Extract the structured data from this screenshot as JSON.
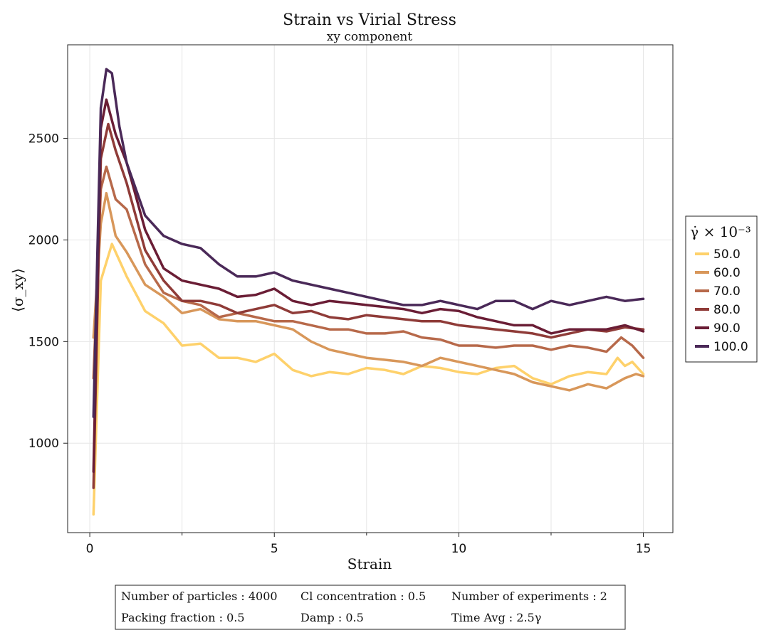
{
  "chart_data": {
    "type": "line",
    "title": "Strain vs Virial Stress",
    "subtitle": "xy component",
    "xlabel": "Strain",
    "ylabel": "⟨σ_xy⟩",
    "xlim": [
      -0.6,
      15.8
    ],
    "ylim": [
      560,
      2960
    ],
    "xticks": [
      0,
      5,
      10,
      15
    ],
    "yticks": [
      1000,
      1500,
      2000,
      2500
    ],
    "grid": true,
    "legend": {
      "title": "γ̇ × 10⁻³",
      "placement": "right"
    },
    "series": [
      {
        "name": "50.0",
        "color": "#fed16b",
        "points": [
          [
            0.1,
            650
          ],
          [
            0.3,
            1800
          ],
          [
            0.6,
            1980
          ],
          [
            0.8,
            1900
          ],
          [
            1.0,
            1820
          ],
          [
            1.5,
            1650
          ],
          [
            2.0,
            1590
          ],
          [
            2.5,
            1480
          ],
          [
            3.0,
            1490
          ],
          [
            3.5,
            1420
          ],
          [
            4.0,
            1420
          ],
          [
            4.5,
            1400
          ],
          [
            5.0,
            1440
          ],
          [
            5.5,
            1360
          ],
          [
            6.0,
            1330
          ],
          [
            6.5,
            1350
          ],
          [
            7.0,
            1340
          ],
          [
            7.5,
            1370
          ],
          [
            8.0,
            1360
          ],
          [
            8.5,
            1340
          ],
          [
            9.0,
            1380
          ],
          [
            9.5,
            1370
          ],
          [
            10.0,
            1350
          ],
          [
            10.5,
            1340
          ],
          [
            11.0,
            1370
          ],
          [
            11.5,
            1380
          ],
          [
            12.0,
            1320
          ],
          [
            12.5,
            1290
          ],
          [
            13.0,
            1330
          ],
          [
            13.5,
            1350
          ],
          [
            14.0,
            1340
          ],
          [
            14.3,
            1420
          ],
          [
            14.5,
            1380
          ],
          [
            14.7,
            1400
          ],
          [
            15.0,
            1340
          ]
        ]
      },
      {
        "name": "60.0",
        "color": "#d8975a",
        "points": [
          [
            0.1,
            1520
          ],
          [
            0.3,
            2080
          ],
          [
            0.45,
            2230
          ],
          [
            0.7,
            2020
          ],
          [
            1.0,
            1940
          ],
          [
            1.5,
            1780
          ],
          [
            2.0,
            1720
          ],
          [
            2.5,
            1640
          ],
          [
            3.0,
            1660
          ],
          [
            3.5,
            1610
          ],
          [
            4.0,
            1600
          ],
          [
            4.5,
            1600
          ],
          [
            5.0,
            1580
          ],
          [
            5.5,
            1560
          ],
          [
            6.0,
            1500
          ],
          [
            6.5,
            1460
          ],
          [
            7.0,
            1440
          ],
          [
            7.5,
            1420
          ],
          [
            8.0,
            1410
          ],
          [
            8.5,
            1400
          ],
          [
            9.0,
            1380
          ],
          [
            9.5,
            1420
          ],
          [
            10.0,
            1400
          ],
          [
            10.5,
            1380
          ],
          [
            11.0,
            1360
          ],
          [
            11.5,
            1340
          ],
          [
            12.0,
            1300
          ],
          [
            12.5,
            1280
          ],
          [
            13.0,
            1260
          ],
          [
            13.5,
            1290
          ],
          [
            14.0,
            1270
          ],
          [
            14.5,
            1320
          ],
          [
            14.8,
            1340
          ],
          [
            15.0,
            1330
          ]
        ]
      },
      {
        "name": "70.0",
        "color": "#b7694a",
        "points": [
          [
            0.1,
            1320
          ],
          [
            0.3,
            2250
          ],
          [
            0.45,
            2360
          ],
          [
            0.7,
            2200
          ],
          [
            1.0,
            2150
          ],
          [
            1.5,
            1880
          ],
          [
            2.0,
            1740
          ],
          [
            2.5,
            1700
          ],
          [
            3.0,
            1680
          ],
          [
            3.5,
            1620
          ],
          [
            4.0,
            1640
          ],
          [
            4.5,
            1620
          ],
          [
            5.0,
            1600
          ],
          [
            5.5,
            1600
          ],
          [
            6.0,
            1580
          ],
          [
            6.5,
            1560
          ],
          [
            7.0,
            1560
          ],
          [
            7.5,
            1540
          ],
          [
            8.0,
            1540
          ],
          [
            8.5,
            1550
          ],
          [
            9.0,
            1520
          ],
          [
            9.5,
            1510
          ],
          [
            10.0,
            1480
          ],
          [
            10.5,
            1480
          ],
          [
            11.0,
            1470
          ],
          [
            11.5,
            1480
          ],
          [
            12.0,
            1480
          ],
          [
            12.5,
            1460
          ],
          [
            13.0,
            1480
          ],
          [
            13.5,
            1470
          ],
          [
            14.0,
            1450
          ],
          [
            14.4,
            1520
          ],
          [
            14.7,
            1480
          ],
          [
            15.0,
            1420
          ]
        ]
      },
      {
        "name": "80.0",
        "color": "#8f3b38",
        "points": [
          [
            0.1,
            780
          ],
          [
            0.3,
            2400
          ],
          [
            0.5,
            2570
          ],
          [
            0.7,
            2440
          ],
          [
            1.0,
            2280
          ],
          [
            1.5,
            1950
          ],
          [
            2.0,
            1800
          ],
          [
            2.5,
            1700
          ],
          [
            3.0,
            1700
          ],
          [
            3.5,
            1680
          ],
          [
            4.0,
            1640
          ],
          [
            4.5,
            1660
          ],
          [
            5.0,
            1680
          ],
          [
            5.5,
            1640
          ],
          [
            6.0,
            1650
          ],
          [
            6.5,
            1620
          ],
          [
            7.0,
            1610
          ],
          [
            7.5,
            1630
          ],
          [
            8.0,
            1620
          ],
          [
            8.5,
            1610
          ],
          [
            9.0,
            1600
          ],
          [
            9.5,
            1600
          ],
          [
            10.0,
            1580
          ],
          [
            10.5,
            1570
          ],
          [
            11.0,
            1560
          ],
          [
            11.5,
            1550
          ],
          [
            12.0,
            1540
          ],
          [
            12.5,
            1520
          ],
          [
            13.0,
            1540
          ],
          [
            13.5,
            1560
          ],
          [
            14.0,
            1550
          ],
          [
            14.5,
            1570
          ],
          [
            15.0,
            1560
          ]
        ]
      },
      {
        "name": "90.0",
        "color": "#6a1d35",
        "points": [
          [
            0.1,
            860
          ],
          [
            0.3,
            2550
          ],
          [
            0.45,
            2690
          ],
          [
            0.7,
            2520
          ],
          [
            1.0,
            2380
          ],
          [
            1.5,
            2050
          ],
          [
            2.0,
            1860
          ],
          [
            2.5,
            1800
          ],
          [
            3.0,
            1780
          ],
          [
            3.5,
            1760
          ],
          [
            4.0,
            1720
          ],
          [
            4.5,
            1730
          ],
          [
            5.0,
            1760
          ],
          [
            5.5,
            1700
          ],
          [
            6.0,
            1680
          ],
          [
            6.5,
            1700
          ],
          [
            7.0,
            1690
          ],
          [
            7.5,
            1680
          ],
          [
            8.0,
            1670
          ],
          [
            8.5,
            1660
          ],
          [
            9.0,
            1640
          ],
          [
            9.5,
            1660
          ],
          [
            10.0,
            1650
          ],
          [
            10.5,
            1620
          ],
          [
            11.0,
            1600
          ],
          [
            11.5,
            1580
          ],
          [
            12.0,
            1580
          ],
          [
            12.5,
            1540
          ],
          [
            13.0,
            1560
          ],
          [
            13.5,
            1560
          ],
          [
            14.0,
            1560
          ],
          [
            14.5,
            1580
          ],
          [
            15.0,
            1550
          ]
        ]
      },
      {
        "name": "100.0",
        "color": "#4a2958",
        "points": [
          [
            0.1,
            1130
          ],
          [
            0.3,
            2650
          ],
          [
            0.45,
            2840
          ],
          [
            0.6,
            2820
          ],
          [
            0.8,
            2560
          ],
          [
            1.0,
            2380
          ],
          [
            1.5,
            2120
          ],
          [
            2.0,
            2020
          ],
          [
            2.5,
            1980
          ],
          [
            3.0,
            1960
          ],
          [
            3.5,
            1880
          ],
          [
            4.0,
            1820
          ],
          [
            4.5,
            1820
          ],
          [
            5.0,
            1840
          ],
          [
            5.5,
            1800
          ],
          [
            6.0,
            1780
          ],
          [
            6.5,
            1760
          ],
          [
            7.0,
            1740
          ],
          [
            7.5,
            1720
          ],
          [
            8.0,
            1700
          ],
          [
            8.5,
            1680
          ],
          [
            9.0,
            1680
          ],
          [
            9.5,
            1700
          ],
          [
            10.0,
            1680
          ],
          [
            10.5,
            1660
          ],
          [
            11.0,
            1700
          ],
          [
            11.5,
            1700
          ],
          [
            12.0,
            1660
          ],
          [
            12.5,
            1700
          ],
          [
            13.0,
            1680
          ],
          [
            13.5,
            1700
          ],
          [
            14.0,
            1720
          ],
          [
            14.5,
            1700
          ],
          [
            15.0,
            1710
          ]
        ]
      }
    ]
  },
  "info_box": {
    "rows": [
      [
        "Number of particles : 4000",
        "Cl concentration : 0.5",
        "Number of experiments : 2"
      ],
      [
        "Packing fraction : 0.5",
        "Damp : 0.5",
        "Time Avg : 2.5γ"
      ]
    ]
  }
}
